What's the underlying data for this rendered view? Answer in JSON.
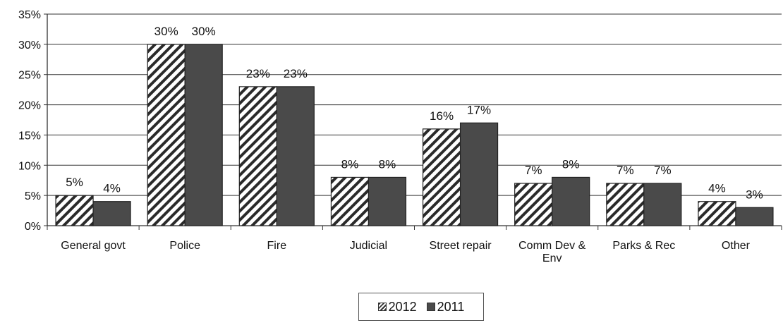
{
  "chart_data": {
    "type": "bar",
    "categories": [
      "General govt",
      "Police",
      "Fire",
      "Judicial",
      "Street repair",
      "Comm Dev & Env",
      "Parks & Rec",
      "Other"
    ],
    "category_lines": [
      [
        "General govt"
      ],
      [
        "Police"
      ],
      [
        "Fire"
      ],
      [
        "Judicial"
      ],
      [
        "Street repair"
      ],
      [
        "Comm Dev &",
        "Env"
      ],
      [
        "Parks & Rec"
      ],
      [
        "Other"
      ]
    ],
    "series": [
      {
        "name": "2012",
        "values": [
          5,
          30,
          23,
          8,
          16,
          7,
          7,
          4
        ],
        "labels": [
          "5%",
          "30%",
          "23%",
          "8%",
          "16%",
          "7%",
          "7%",
          "4%"
        ],
        "fill": "hatched",
        "color": "#333333"
      },
      {
        "name": "2011",
        "values": [
          4,
          30,
          23,
          8,
          17,
          8,
          7,
          3
        ],
        "labels": [
          "4%",
          "30%",
          "23%",
          "8%",
          "17%",
          "8%",
          "7%",
          "3%"
        ],
        "fill": "solid",
        "color": "#4a4a4a"
      }
    ],
    "yticks": [
      "0%",
      "5%",
      "10%",
      "15%",
      "20%",
      "25%",
      "30%",
      "35%"
    ],
    "ylim": [
      0,
      35
    ],
    "grid": true,
    "legend_position": "bottom-center"
  },
  "legend": {
    "item_2012": "2012",
    "item_2011": "2011"
  }
}
